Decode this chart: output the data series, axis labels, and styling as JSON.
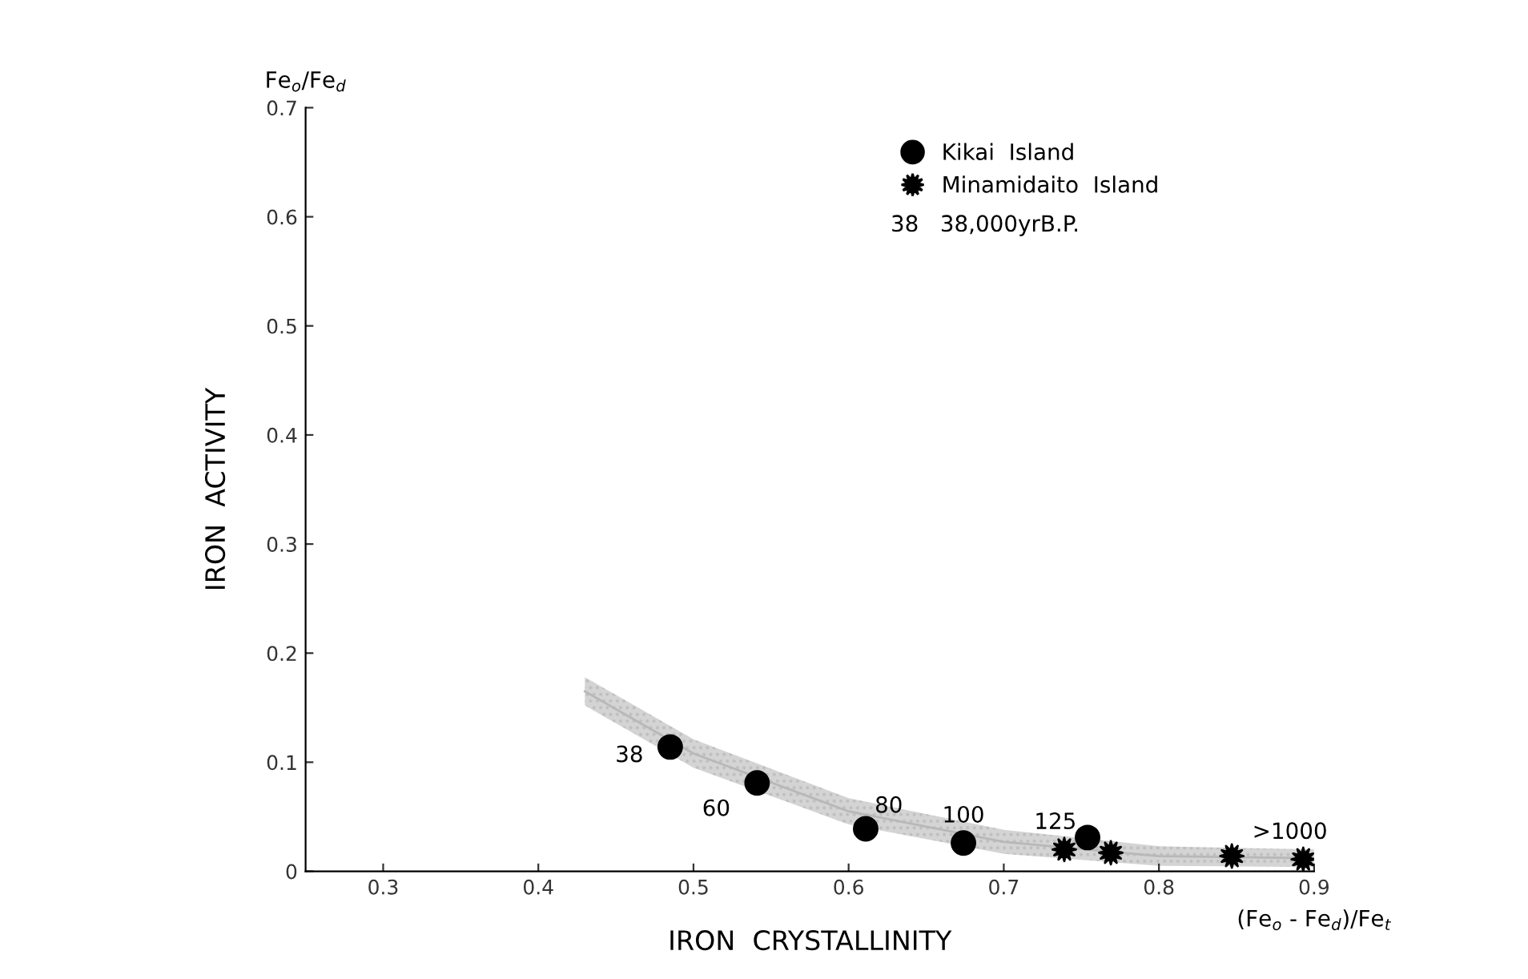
{
  "chart_data": {
    "type": "scatter",
    "xlabel": "IRON  CRYSTALLINITY",
    "ylabel": "IRON  ACTIVITY",
    "annotations": [
      "Fe$_{o}$/Fe$_{d}$",
      "(Fe$_{o}$ - Fe$_{d}$)/Fe$_{t}$",
      "38   38,000yrB.P.",
      {
        "text": "38",
        "x": 0.485,
        "y": 0.114
      },
      {
        "text": "60",
        "x": 0.541,
        "y": 0.081
      },
      {
        "text": "80",
        "x": 0.611,
        "y": 0.039
      },
      {
        "text": "100",
        "x": 0.674,
        "y": 0.026
      },
      {
        "text": "125",
        "x": 0.739,
        "y": 0.02
      },
      {
        "text": ">1000",
        "x": 0.893,
        "y": 0.011
      }
    ],
    "series": [
      {
        "type": "line",
        "color": "#b8b8b8",
        "x": [
          0.43,
          0.5,
          0.6,
          0.7,
          0.8,
          0.9
        ],
        "values": [
          0.165,
          0.108,
          0.055,
          0.027,
          0.014,
          0.012
        ],
        "lower": [
          0.152,
          0.095,
          0.043,
          0.016,
          0.005,
          0.004
        ],
        "upper": [
          0.178,
          0.121,
          0.067,
          0.038,
          0.023,
          0.02
        ]
      },
      {
        "name": "Kikai  Island",
        "color": "#000000",
        "marker": "circle",
        "x": [
          0.485,
          0.541,
          0.611,
          0.674,
          0.754
        ],
        "values": [
          0.114,
          0.081,
          0.039,
          0.026,
          0.031
        ]
      },
      {
        "name": "Minamidaito  Island",
        "color": "#000000",
        "marker": "star",
        "x": [
          0.739,
          0.769,
          0.847,
          0.893
        ],
        "values": [
          0.02,
          0.017,
          0.014,
          0.011
        ]
      }
    ],
    "xlim": [
      0.25,
      0.9
    ],
    "xticks": [
      0.3,
      0.4,
      0.5,
      0.6,
      0.7,
      0.8,
      0.9
    ],
    "ylim": [
      0,
      0.7
    ],
    "yticks": [
      0,
      0.1,
      0.2,
      0.3,
      0.4,
      0.5,
      0.6,
      0.7
    ],
    "grid": false,
    "legend": "top right"
  }
}
